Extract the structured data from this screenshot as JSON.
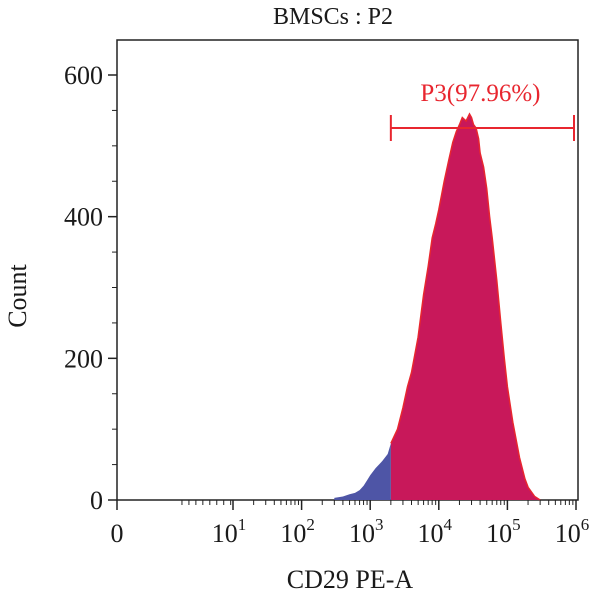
{
  "chart_data": {
    "type": "area",
    "title": "BMSCs : P2",
    "xlabel": "CD29 PE-A",
    "ylabel": "Count",
    "x_scale": "log (biexponential)",
    "x_ticks": [
      {
        "label": "0",
        "exp": ""
      },
      {
        "label": "10",
        "exp": "1"
      },
      {
        "label": "10",
        "exp": "2"
      },
      {
        "label": "10",
        "exp": "3"
      },
      {
        "label": "10",
        "exp": "4"
      },
      {
        "label": "10",
        "exp": "5"
      },
      {
        "label": "10",
        "exp": "6"
      }
    ],
    "ylim": [
      0,
      600
    ],
    "y_ticks": [
      "0",
      "200",
      "400",
      "600"
    ],
    "gate": {
      "label": "P3(97.96%)",
      "range": [
        2000,
        1000000
      ],
      "percent": 97.96
    },
    "histogram": {
      "x": [
        300,
        400,
        500,
        600,
        700,
        800,
        900,
        1000,
        1200,
        1500,
        1800,
        2000,
        2500,
        3000,
        3500,
        4000,
        5000,
        6000,
        7000,
        8000,
        9000,
        10000,
        12000,
        14000,
        16000,
        18000,
        20000,
        22000,
        25000,
        28000,
        30000,
        32000,
        35000,
        38000,
        40000,
        45000,
        50000,
        55000,
        60000,
        70000,
        80000,
        90000,
        100000,
        120000,
        150000,
        180000,
        200000,
        250000,
        300000
      ],
      "y": [
        3,
        5,
        8,
        10,
        14,
        20,
        28,
        35,
        45,
        55,
        65,
        80,
        100,
        130,
        160,
        180,
        230,
        290,
        330,
        370,
        390,
        410,
        450,
        480,
        505,
        520,
        530,
        540,
        535,
        545,
        540,
        530,
        525,
        510,
        490,
        470,
        440,
        400,
        370,
        310,
        250,
        200,
        160,
        110,
        60,
        30,
        18,
        5,
        0
      ],
      "gated_color": "#c8185a",
      "ungated_color": "#4e55a6",
      "outline_color": "#e8262f"
    }
  }
}
